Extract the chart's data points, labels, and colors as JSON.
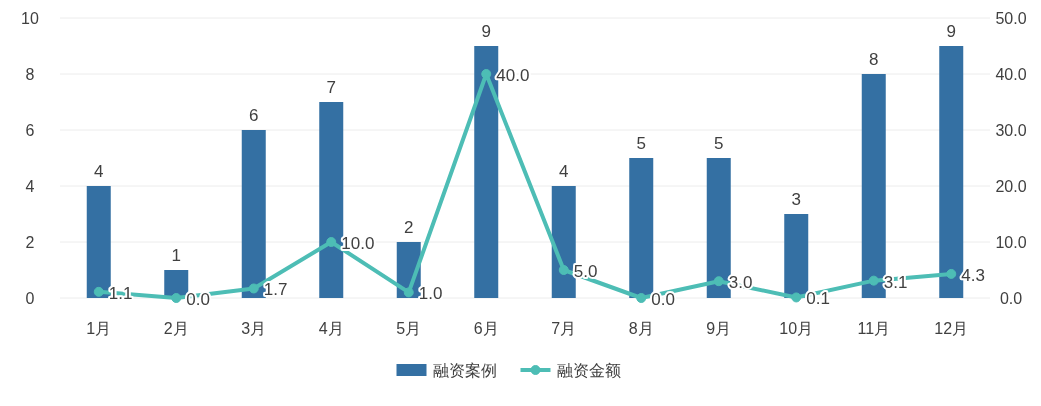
{
  "chart_data": {
    "type": "bar",
    "categories": [
      "1月",
      "2月",
      "3月",
      "4月",
      "5月",
      "6月",
      "7月",
      "8月",
      "9月",
      "10月",
      "11月",
      "12月"
    ],
    "series": [
      {
        "name": "融资案例",
        "color": "#3470a3",
        "values": [
          4,
          1,
          6,
          7,
          2,
          9,
          4,
          5,
          5,
          3,
          8,
          9
        ],
        "value_labels": [
          "4",
          "1",
          "6",
          "7",
          "2",
          "9",
          "4",
          "5",
          "5",
          "3",
          "8",
          "9"
        ]
      },
      {
        "name": "融资金额",
        "type": "line",
        "axis": "y2",
        "color": "#4dbdb5",
        "values": [
          1.1,
          0.0,
          1.7,
          10.0,
          1.0,
          40.0,
          5.0,
          0.0,
          3.0,
          0.1,
          3.1,
          4.3
        ],
        "value_labels": [
          "1.1",
          "0.0",
          "1.7",
          "10.0",
          "1.0",
          "40.0",
          "5.0",
          "0.0",
          "3.0",
          "0.1",
          "3.1",
          "4.3"
        ]
      }
    ],
    "ylim": [
      0,
      10
    ],
    "yticks": [
      0,
      2,
      4,
      6,
      8,
      10
    ],
    "y2lim": [
      0,
      50
    ],
    "y2ticks": [
      {
        "value": 0,
        "label": "0.0"
      },
      {
        "value": 10,
        "label": "10.0"
      },
      {
        "value": 20,
        "label": "20.0"
      },
      {
        "value": 30,
        "label": "30.0"
      },
      {
        "value": 40,
        "label": "40.0"
      },
      {
        "value": 50,
        "label": "50.0"
      }
    ],
    "grid": "y",
    "legend": "bottom",
    "marker": "circle",
    "line_style": "solid"
  }
}
